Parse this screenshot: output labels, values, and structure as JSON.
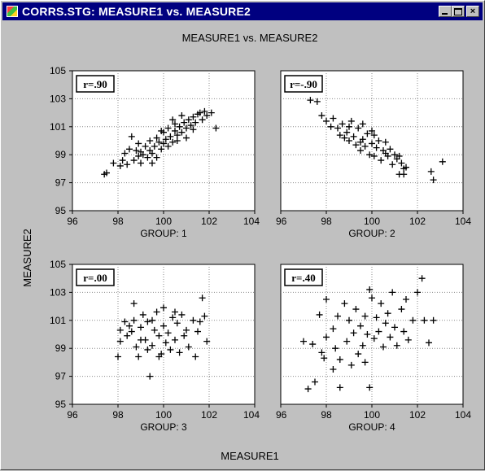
{
  "window": {
    "title": "CORRS.STG: MEASURE1 vs. MEASURE2",
    "minimize_icon": "minimize-icon",
    "maximize_icon": "maximize-icon",
    "close_icon": "close-icon",
    "close_glyph": "×"
  },
  "chart_data": {
    "type": "scatter",
    "title": "MEASURE1 vs. MEASURE2",
    "xlabel": "MEASURE1",
    "ylabel": "MEASURE2",
    "xlim": [
      96,
      104
    ],
    "ylim": [
      95,
      105
    ],
    "x_ticks": [
      96,
      98,
      100,
      102,
      104
    ],
    "y_ticks": [
      95,
      97,
      99,
      101,
      103,
      105
    ],
    "grid": true,
    "marker": "+",
    "panels": [
      {
        "name": "GROUP: 1",
        "annotation": "r=.90",
        "points": [
          [
            97.4,
            97.6
          ],
          [
            97.5,
            97.7
          ],
          [
            97.8,
            98.4
          ],
          [
            98.1,
            98.2
          ],
          [
            98.2,
            98.6
          ],
          [
            98.3,
            99.1
          ],
          [
            98.5,
            99.4
          ],
          [
            98.4,
            98.3
          ],
          [
            98.7,
            98.6
          ],
          [
            98.8,
            99.3
          ],
          [
            98.9,
            99.8
          ],
          [
            99.0,
            98.4
          ],
          [
            99.1,
            99.0
          ],
          [
            99.2,
            99.6
          ],
          [
            99.3,
            98.8
          ],
          [
            99.4,
            99.3
          ],
          [
            99.4,
            100.0
          ],
          [
            99.5,
            99.1
          ],
          [
            99.6,
            99.6
          ],
          [
            99.7,
            100.2
          ],
          [
            99.7,
            98.8
          ],
          [
            99.8,
            99.9
          ],
          [
            99.9,
            99.4
          ],
          [
            100.0,
            100.6
          ],
          [
            100.0,
            99.8
          ],
          [
            100.1,
            100.1
          ],
          [
            100.2,
            100.9
          ],
          [
            100.3,
            100.3
          ],
          [
            100.4,
            99.9
          ],
          [
            100.5,
            100.7
          ],
          [
            100.5,
            101.2
          ],
          [
            100.6,
            100.4
          ],
          [
            100.7,
            101.0
          ],
          [
            100.8,
            100.6
          ],
          [
            100.9,
            101.3
          ],
          [
            101.0,
            100.9
          ],
          [
            101.1,
            101.5
          ],
          [
            101.2,
            101.1
          ],
          [
            101.3,
            101.7
          ],
          [
            101.4,
            101.3
          ],
          [
            101.5,
            101.9
          ],
          [
            101.6,
            102.0
          ],
          [
            101.7,
            101.5
          ],
          [
            101.8,
            102.1
          ],
          [
            101.9,
            101.8
          ],
          [
            102.1,
            102.0
          ],
          [
            102.3,
            100.9
          ],
          [
            98.6,
            100.3
          ],
          [
            99.0,
            99.2
          ],
          [
            99.9,
            100.7
          ],
          [
            100.2,
            99.6
          ],
          [
            100.8,
            101.8
          ],
          [
            101.0,
            100.2
          ],
          [
            99.5,
            98.4
          ],
          [
            100.4,
            101.5
          ],
          [
            101.3,
            100.8
          ],
          [
            98.9,
            98.9
          ],
          [
            100.6,
            100.0
          ]
        ]
      },
      {
        "name": "GROUP: 2",
        "annotation": "r=-.90",
        "points": [
          [
            97.3,
            102.9
          ],
          [
            97.6,
            102.8
          ],
          [
            97.8,
            101.8
          ],
          [
            98.0,
            101.4
          ],
          [
            98.2,
            101.0
          ],
          [
            98.3,
            101.6
          ],
          [
            98.5,
            100.9
          ],
          [
            98.6,
            100.4
          ],
          [
            98.7,
            101.2
          ],
          [
            98.9,
            100.6
          ],
          [
            99.0,
            100.0
          ],
          [
            99.1,
            101.4
          ],
          [
            99.2,
            100.3
          ],
          [
            99.3,
            99.7
          ],
          [
            99.4,
            100.9
          ],
          [
            99.5,
            99.3
          ],
          [
            99.6,
            100.1
          ],
          [
            99.6,
            101.2
          ],
          [
            99.7,
            99.6
          ],
          [
            99.8,
            100.5
          ],
          [
            99.9,
            99.0
          ],
          [
            100.0,
            99.8
          ],
          [
            100.1,
            100.4
          ],
          [
            100.1,
            98.9
          ],
          [
            100.2,
            99.5
          ],
          [
            100.3,
            100.0
          ],
          [
            100.4,
            98.6
          ],
          [
            100.5,
            99.3
          ],
          [
            100.6,
            99.9
          ],
          [
            100.7,
            98.9
          ],
          [
            100.8,
            99.4
          ],
          [
            100.9,
            98.3
          ],
          [
            101.0,
            99.0
          ],
          [
            101.1,
            98.7
          ],
          [
            101.2,
            97.6
          ],
          [
            101.3,
            98.4
          ],
          [
            101.4,
            97.6
          ],
          [
            101.5,
            98.1
          ],
          [
            101.2,
            98.9
          ],
          [
            102.6,
            97.8
          ],
          [
            102.7,
            97.2
          ],
          [
            103.1,
            98.5
          ],
          [
            99.0,
            101.0
          ],
          [
            99.5,
            99.9
          ],
          [
            100.6,
            99.1
          ],
          [
            98.8,
            100.2
          ],
          [
            100.0,
            100.7
          ],
          [
            101.4,
            98.0
          ]
        ]
      },
      {
        "name": "GROUP: 3",
        "annotation": "r=.00",
        "points": [
          [
            98.0,
            98.4
          ],
          [
            98.1,
            99.5
          ],
          [
            98.1,
            100.3
          ],
          [
            98.3,
            100.9
          ],
          [
            98.4,
            99.9
          ],
          [
            98.6,
            100.2
          ],
          [
            98.7,
            101.0
          ],
          [
            98.7,
            102.2
          ],
          [
            98.8,
            99.1
          ],
          [
            98.9,
            98.4
          ],
          [
            99.0,
            100.5
          ],
          [
            99.1,
            101.4
          ],
          [
            99.2,
            99.6
          ],
          [
            99.3,
            98.9
          ],
          [
            99.3,
            100.9
          ],
          [
            99.4,
            97.0
          ],
          [
            99.5,
            101.0
          ],
          [
            99.5,
            99.2
          ],
          [
            99.6,
            100.3
          ],
          [
            99.7,
            101.6
          ],
          [
            99.8,
            99.9
          ],
          [
            99.9,
            98.6
          ],
          [
            100.0,
            100.6
          ],
          [
            100.0,
            101.9
          ],
          [
            100.1,
            99.4
          ],
          [
            100.2,
            100.1
          ],
          [
            100.3,
            98.9
          ],
          [
            100.4,
            101.2
          ],
          [
            100.5,
            99.6
          ],
          [
            100.6,
            100.8
          ],
          [
            100.7,
            98.7
          ],
          [
            100.8,
            101.4
          ],
          [
            100.9,
            99.9
          ],
          [
            101.0,
            100.3
          ],
          [
            101.1,
            99.1
          ],
          [
            101.3,
            101.0
          ],
          [
            101.4,
            98.4
          ],
          [
            101.5,
            100.2
          ],
          [
            101.7,
            102.6
          ],
          [
            101.8,
            101.3
          ],
          [
            101.9,
            99.5
          ],
          [
            101.6,
            100.9
          ],
          [
            99.8,
            98.4
          ],
          [
            100.5,
            101.6
          ],
          [
            98.5,
            100.6
          ],
          [
            99.0,
            99.6
          ]
        ]
      },
      {
        "name": "GROUP: 4",
        "annotation": "r=.40",
        "points": [
          [
            97.0,
            99.5
          ],
          [
            97.2,
            96.1
          ],
          [
            97.4,
            99.3
          ],
          [
            97.5,
            96.6
          ],
          [
            97.8,
            98.7
          ],
          [
            97.9,
            98.3
          ],
          [
            98.0,
            102.5
          ],
          [
            98.0,
            99.8
          ],
          [
            98.3,
            100.4
          ],
          [
            98.4,
            99.0
          ],
          [
            98.5,
            101.3
          ],
          [
            98.6,
            96.2
          ],
          [
            98.6,
            98.2
          ],
          [
            98.8,
            102.2
          ],
          [
            98.9,
            99.5
          ],
          [
            99.0,
            101.0
          ],
          [
            99.1,
            97.8
          ],
          [
            99.2,
            100.1
          ],
          [
            99.3,
            101.8
          ],
          [
            99.4,
            98.6
          ],
          [
            99.5,
            100.6
          ],
          [
            99.6,
            99.2
          ],
          [
            99.7,
            101.3
          ],
          [
            99.8,
            100.0
          ],
          [
            99.9,
            96.2
          ],
          [
            99.9,
            103.2
          ],
          [
            100.0,
            102.6
          ],
          [
            100.1,
            99.7
          ],
          [
            100.2,
            101.2
          ],
          [
            100.3,
            100.2
          ],
          [
            100.4,
            102.2
          ],
          [
            100.5,
            99.1
          ],
          [
            100.6,
            100.8
          ],
          [
            100.7,
            101.5
          ],
          [
            100.8,
            99.8
          ],
          [
            100.9,
            103.0
          ],
          [
            101.0,
            100.5
          ],
          [
            101.1,
            99.2
          ],
          [
            101.3,
            101.8
          ],
          [
            101.4,
            100.2
          ],
          [
            101.5,
            102.5
          ],
          [
            101.6,
            99.6
          ],
          [
            101.8,
            101.0
          ],
          [
            102.0,
            103.0
          ],
          [
            102.2,
            104.0
          ],
          [
            102.3,
            101.0
          ],
          [
            102.5,
            99.4
          ],
          [
            102.7,
            101.0
          ],
          [
            97.7,
            101.4
          ],
          [
            98.3,
            97.5
          ],
          [
            99.7,
            98.0
          ]
        ]
      }
    ]
  }
}
